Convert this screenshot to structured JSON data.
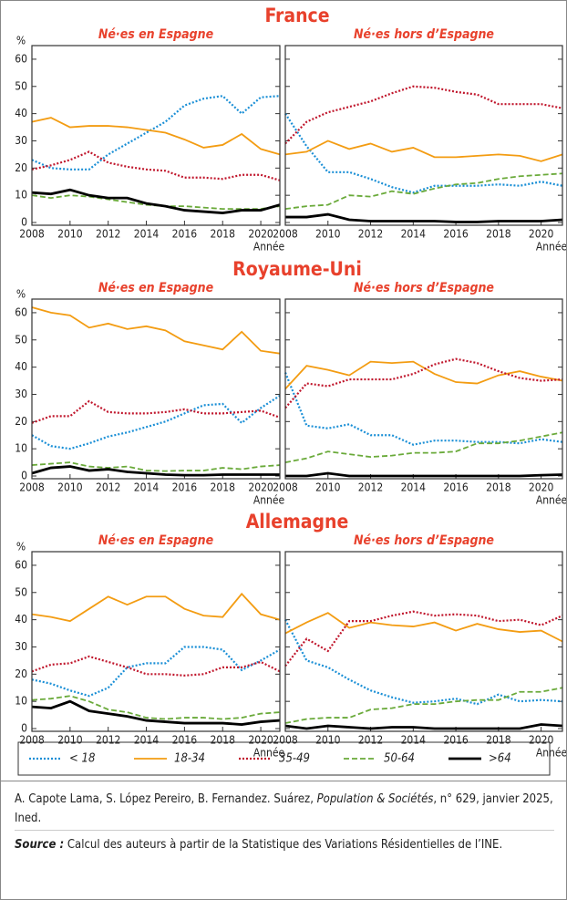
{
  "groups": [
    "France",
    "Royaume-Uni",
    "Allemagne"
  ],
  "chart_data": [
    {
      "type": "line",
      "title": "Né·es en Espagne",
      "ylabel": "%",
      "xlabel": "Année",
      "x": [
        2008,
        2009,
        2010,
        2011,
        2012,
        2013,
        2014,
        2015,
        2016,
        2017,
        2018,
        2019,
        2020,
        2021
      ],
      "xlim": [
        2008,
        2021
      ],
      "xticks": [
        2008,
        2010,
        2012,
        2014,
        2016,
        2018,
        2020
      ],
      "ylim": [
        -1,
        65
      ],
      "yticks": [
        0,
        10,
        20,
        30,
        40,
        50,
        60
      ],
      "series": [
        {
          "name": "< 18",
          "color": "#1a8fd6",
          "style": "dotted",
          "values": [
            23,
            20,
            19.5,
            19.5,
            25,
            29,
            33,
            37,
            43,
            45.5,
            46.5,
            40,
            46,
            46.5
          ]
        },
        {
          "name": "18-34",
          "color": "#f39c12",
          "style": "solid",
          "values": [
            37,
            38.5,
            35,
            35.5,
            35.5,
            35,
            34,
            33,
            30.5,
            27.5,
            28.5,
            32.5,
            27,
            25
          ]
        },
        {
          "name": "35-49",
          "color": "#c0162c",
          "style": "dotted",
          "values": [
            19.5,
            21,
            23,
            26,
            22,
            20.5,
            19.5,
            19,
            16.5,
            16.5,
            16,
            17.5,
            17.5,
            15.5
          ]
        },
        {
          "name": "50-64",
          "color": "#6aaa3a",
          "style": "dashed",
          "values": [
            10,
            9,
            10,
            9.5,
            8.5,
            7.5,
            6.5,
            6,
            6,
            5.5,
            5,
            5,
            5,
            6
          ]
        },
        {
          "name": ">64",
          "color": "#000000",
          "style": "thick",
          "values": [
            11,
            10.5,
            12,
            10,
            9,
            9,
            7,
            6,
            4.5,
            4,
            3.5,
            4.5,
            4.5,
            6.5
          ]
        }
      ]
    },
    {
      "type": "line",
      "title": "Né·es hors d’Espagne",
      "xlabel": "Année",
      "x": [
        2008,
        2009,
        2010,
        2011,
        2012,
        2013,
        2014,
        2015,
        2016,
        2017,
        2018,
        2019,
        2020,
        2021
      ],
      "xlim": [
        2008,
        2021
      ],
      "xticks": [
        2008,
        2010,
        2012,
        2014,
        2016,
        2018,
        2020
      ],
      "ylim": [
        -1,
        65
      ],
      "yticks": [
        0,
        10,
        20,
        30,
        40,
        50,
        60
      ],
      "series": [
        {
          "color": "#1a8fd6",
          "style": "dotted",
          "values": [
            40,
            28,
            18.5,
            18.5,
            16,
            13,
            11,
            13.5,
            13.5,
            13.5,
            14,
            13.5,
            15,
            13.5
          ]
        },
        {
          "color": "#f39c12",
          "style": "solid",
          "values": [
            25,
            26,
            30,
            27,
            29,
            26,
            27.5,
            24,
            24,
            24.5,
            25,
            24.5,
            22.5,
            25
          ]
        },
        {
          "color": "#c0162c",
          "style": "dotted",
          "values": [
            29,
            37,
            40.5,
            42.5,
            44.5,
            47.5,
            50,
            49.5,
            48,
            47,
            43.5,
            43.5,
            43.5,
            42
          ]
        },
        {
          "color": "#6aaa3a",
          "style": "dashed",
          "values": [
            5,
            6,
            6.5,
            10,
            9.5,
            11.5,
            10.5,
            12.5,
            14,
            14.5,
            16,
            17,
            17.5,
            18
          ]
        },
        {
          "color": "#000000",
          "style": "thick",
          "values": [
            2,
            2,
            3,
            1,
            0.5,
            0.5,
            0.5,
            0.5,
            0.2,
            0.2,
            0.5,
            0.5,
            0.5,
            1
          ]
        }
      ]
    },
    {
      "type": "line",
      "title": "Né·es en Espagne",
      "ylabel": "%",
      "xlabel": "Année",
      "x": [
        2008,
        2009,
        2010,
        2011,
        2012,
        2013,
        2014,
        2015,
        2016,
        2017,
        2018,
        2019,
        2020,
        2021
      ],
      "xlim": [
        2008,
        2021
      ],
      "xticks": [
        2008,
        2010,
        2012,
        2014,
        2016,
        2018,
        2020
      ],
      "ylim": [
        -1,
        65
      ],
      "yticks": [
        0,
        10,
        20,
        30,
        40,
        50,
        60
      ],
      "series": [
        {
          "color": "#1a8fd6",
          "style": "dotted",
          "values": [
            15,
            11,
            10,
            12,
            14.5,
            16,
            18,
            20,
            23,
            26,
            26.5,
            19.5,
            25,
            29.5
          ]
        },
        {
          "color": "#f39c12",
          "style": "solid",
          "values": [
            62,
            60,
            59,
            54.5,
            56,
            54,
            55,
            53.5,
            49.5,
            48,
            46.5,
            53,
            46,
            45
          ]
        },
        {
          "color": "#c0162c",
          "style": "dotted",
          "values": [
            19.5,
            22,
            22,
            27.5,
            23.5,
            23,
            23,
            23.5,
            24.5,
            23,
            23,
            23.5,
            24,
            21.5
          ]
        },
        {
          "color": "#6aaa3a",
          "style": "dashed",
          "values": [
            4,
            4.5,
            5,
            3.5,
            3,
            3.5,
            2,
            1.8,
            2,
            2,
            3,
            2.5,
            3.5,
            4
          ]
        },
        {
          "color": "#000000",
          "style": "thick",
          "values": [
            1,
            3,
            3.5,
            2,
            2.5,
            1.5,
            1,
            0.5,
            0.3,
            0.3,
            0.5,
            0.5,
            0.5,
            0.5
          ]
        }
      ]
    },
    {
      "type": "line",
      "title": "Né·es hors d’Espagne",
      "xlabel": "Année",
      "x": [
        2008,
        2009,
        2010,
        2011,
        2012,
        2013,
        2014,
        2015,
        2016,
        2017,
        2018,
        2019,
        2020,
        2021
      ],
      "xlim": [
        2008,
        2021
      ],
      "xticks": [
        2008,
        2010,
        2012,
        2014,
        2016,
        2018,
        2020
      ],
      "ylim": [
        -1,
        65
      ],
      "yticks": [
        0,
        10,
        20,
        30,
        40,
        50,
        60
      ],
      "series": [
        {
          "color": "#1a8fd6",
          "style": "dotted",
          "values": [
            38,
            18.5,
            17.5,
            19,
            15,
            15,
            11.5,
            13,
            13,
            12.5,
            12.5,
            12,
            13.5,
            12.5
          ]
        },
        {
          "color": "#f39c12",
          "style": "solid",
          "values": [
            32,
            40.5,
            39,
            37,
            42,
            41.5,
            42,
            37.5,
            34.5,
            34,
            37,
            38.5,
            36.5,
            35
          ]
        },
        {
          "color": "#c0162c",
          "style": "dotted",
          "values": [
            25,
            34,
            33,
            35.5,
            35.5,
            35.5,
            37.5,
            41,
            43,
            41.5,
            38.5,
            36,
            35,
            35.5
          ]
        },
        {
          "color": "#6aaa3a",
          "style": "dashed",
          "values": [
            5,
            6.5,
            9,
            8,
            7,
            7.5,
            8.5,
            8.5,
            9,
            12,
            12,
            13,
            14.5,
            16
          ]
        },
        {
          "color": "#000000",
          "style": "thick",
          "values": [
            0,
            0,
            1,
            0,
            0,
            0,
            0,
            0,
            0,
            0,
            0,
            0,
            0.3,
            0.5
          ]
        }
      ]
    },
    {
      "type": "line",
      "title": "Né·es en Espagne",
      "ylabel": "%",
      "xlabel": "Année",
      "x": [
        2008,
        2009,
        2010,
        2011,
        2012,
        2013,
        2014,
        2015,
        2016,
        2017,
        2018,
        2019,
        2020,
        2021
      ],
      "xlim": [
        2008,
        2021
      ],
      "xticks": [
        2008,
        2010,
        2012,
        2014,
        2016,
        2018,
        2020
      ],
      "ylim": [
        -1,
        65
      ],
      "yticks": [
        0,
        10,
        20,
        30,
        40,
        50,
        60
      ],
      "series": [
        {
          "color": "#1a8fd6",
          "style": "dotted",
          "values": [
            18,
            16.5,
            14,
            12,
            15,
            22.5,
            24,
            24,
            30,
            30,
            29,
            21.5,
            25,
            29
          ]
        },
        {
          "color": "#f39c12",
          "style": "solid",
          "values": [
            42,
            41,
            39.5,
            44,
            48.5,
            45.5,
            48.5,
            48.5,
            44,
            41.5,
            41,
            49.5,
            42,
            40
          ]
        },
        {
          "color": "#c0162c",
          "style": "dotted",
          "values": [
            21,
            23.5,
            24,
            26.5,
            24.5,
            22.5,
            20,
            20,
            19.5,
            20,
            22.5,
            22.5,
            24.5,
            21
          ]
        },
        {
          "color": "#6aaa3a",
          "style": "dashed",
          "values": [
            10.5,
            11,
            12,
            10,
            7,
            6,
            4,
            3.5,
            4,
            4,
            3.5,
            4,
            5.5,
            6
          ]
        },
        {
          "color": "#000000",
          "style": "thick",
          "values": [
            8,
            7.5,
            10,
            6.5,
            5.5,
            4.5,
            3,
            2.5,
            2,
            2,
            2,
            1.5,
            2.5,
            3
          ]
        }
      ]
    },
    {
      "type": "line",
      "title": "Né·es hors d’Espagne",
      "xlabel": "Année",
      "x": [
        2008,
        2009,
        2010,
        2011,
        2012,
        2013,
        2014,
        2015,
        2016,
        2017,
        2018,
        2019,
        2020,
        2021
      ],
      "xlim": [
        2008,
        2021
      ],
      "xticks": [
        2008,
        2010,
        2012,
        2014,
        2016,
        2018,
        2020
      ],
      "ylim": [
        -1,
        65
      ],
      "yticks": [
        0,
        10,
        20,
        30,
        40,
        50,
        60
      ],
      "series": [
        {
          "color": "#1a8fd6",
          "style": "dotted",
          "values": [
            40,
            25,
            22.5,
            18,
            14,
            11.5,
            9.5,
            10,
            11,
            9,
            12.5,
            10,
            10.5,
            10
          ]
        },
        {
          "color": "#f39c12",
          "style": "solid",
          "values": [
            35,
            39,
            42.5,
            37,
            39,
            38,
            37.5,
            39,
            36,
            38.5,
            36.5,
            35.5,
            36,
            32
          ]
        },
        {
          "color": "#c0162c",
          "style": "dotted",
          "values": [
            23,
            33,
            28.5,
            39.5,
            39.5,
            41.5,
            43,
            41.5,
            42,
            41.5,
            39.5,
            40,
            38,
            41.5
          ]
        },
        {
          "color": "#6aaa3a",
          "style": "dashed",
          "values": [
            2,
            3.5,
            4,
            4,
            7,
            7.5,
            9,
            9,
            10,
            10.5,
            10.5,
            13.5,
            13.5,
            15
          ]
        },
        {
          "color": "#000000",
          "style": "thick",
          "values": [
            1,
            0,
            1,
            0.5,
            0,
            0.5,
            0.5,
            0,
            0,
            0,
            0,
            0,
            1.5,
            1
          ]
        }
      ]
    }
  ],
  "credits": [
    "A. Capote Lama, S. López Pereiro, B. Fernandez. Suárez, ",
    "Population & Sociétés",
    ", n° 629, janvier 2025, Ined."
  ],
  "source": {
    "label": "Source :",
    "text": " Calcul des auteurs à partir de la Statistique des Variations Résidentielles de l’INE."
  }
}
